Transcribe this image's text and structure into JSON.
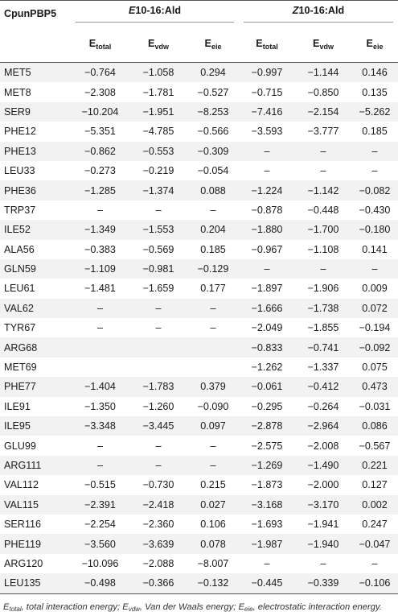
{
  "header": {
    "protein": "CpunPBP5",
    "group_e": {
      "isomer": "E",
      "suffix": "10-16:Ald"
    },
    "group_z": {
      "isomer": "Z",
      "suffix": "10-16:Ald"
    },
    "energy_base": "E",
    "energy_subs": [
      "total",
      "vdw",
      "eie"
    ]
  },
  "rows": [
    [
      "MET5",
      "−0.764",
      "−1.058",
      "0.294",
      "−0.997",
      "−1.144",
      "0.146"
    ],
    [
      "MET8",
      "−2.308",
      "−1.781",
      "−0.527",
      "−0.715",
      "−0.850",
      "0.135"
    ],
    [
      "SER9",
      "−10.204",
      "−1.951",
      "−8.253",
      "−7.416",
      "−2.154",
      "−5.262"
    ],
    [
      "PHE12",
      "−5.351",
      "−4.785",
      "−0.566",
      "−3.593",
      "−3.777",
      "0.185"
    ],
    [
      "PHE13",
      "−0.862",
      "−0.553",
      "−0.309",
      "–",
      "–",
      "–"
    ],
    [
      "LEU33",
      "−0.273",
      "−0.219",
      "−0.054",
      "–",
      "–",
      "–"
    ],
    [
      "PHE36",
      "−1.285",
      "−1.374",
      "0.088",
      "−1.224",
      "−1.142",
      "−0.082"
    ],
    [
      "TRP37",
      "–",
      "–",
      "–",
      "−0.878",
      "−0.448",
      "−0.430"
    ],
    [
      "ILE52",
      "−1.349",
      "−1.553",
      "0.204",
      "−1.880",
      "−1.700",
      "−0.180"
    ],
    [
      "ALA56",
      "−0.383",
      "−0.569",
      "0.185",
      "−0.967",
      "−1.108",
      "0.141"
    ],
    [
      "GLN59",
      "−1.109",
      "−0.981",
      "−0.129",
      "–",
      "–",
      "–"
    ],
    [
      "LEU61",
      "−1.481",
      "−1.659",
      "0.177",
      "−1.897",
      "−1.906",
      "0.009"
    ],
    [
      "VAL62",
      "–",
      "–",
      "–",
      "−1.666",
      "−1.738",
      "0.072"
    ],
    [
      "TYR67",
      "–",
      "–",
      "–",
      "−2.049",
      "−1.855",
      "−0.194"
    ],
    [
      "ARG68",
      "",
      "",
      "",
      "−0.833",
      "−0.741",
      "−0.092"
    ],
    [
      "MET69",
      "",
      "",
      "",
      "−1.262",
      "−1.337",
      "0.075"
    ],
    [
      "PHE77",
      "−1.404",
      "−1.783",
      "0.379",
      "−0.061",
      "−0.412",
      "0.473"
    ],
    [
      "ILE91",
      "−1.350",
      "−1.260",
      "−0.090",
      "−0.295",
      "−0.264",
      "−0.031"
    ],
    [
      "ILE95",
      "−3.348",
      "−3.445",
      "0.097",
      "−2.878",
      "−2.964",
      "0.086"
    ],
    [
      "GLU99",
      "–",
      "–",
      "–",
      "−2.575",
      "−2.008",
      "−0.567"
    ],
    [
      "ARG111",
      "–",
      "–",
      "–",
      "−1.269",
      "−1.490",
      "0.221"
    ],
    [
      "VAL112",
      "−0.515",
      "−0.730",
      "0.215",
      "−1.873",
      "−2.000",
      "0.127"
    ],
    [
      "VAL115",
      "−2.391",
      "−2.418",
      "0.027",
      "−3.168",
      "−3.170",
      "0.002"
    ],
    [
      "SER116",
      "−2.254",
      "−2.360",
      "0.106",
      "−1.693",
      "−1.941",
      "0.247"
    ],
    [
      "PHE119",
      "−3.560",
      "−3.639",
      "0.078",
      "−1.987",
      "−1.940",
      "−0.047"
    ],
    [
      "ARG120",
      "−10.096",
      "−2.088",
      "−8.007",
      "–",
      "–",
      "–"
    ],
    [
      "LEU135",
      "−0.498",
      "−0.366",
      "−0.132",
      "−0.445",
      "−0.339",
      "−0.106"
    ]
  ],
  "footnote": {
    "parts": [
      {
        "base": "E",
        "sub": "total",
        "desc": ", total interaction energy; "
      },
      {
        "base": "E",
        "sub": "vdw",
        "desc": ", Van der Waals energy; "
      },
      {
        "base": "E",
        "sub": "eie",
        "desc": ", electrostatic interaction energy."
      }
    ]
  }
}
